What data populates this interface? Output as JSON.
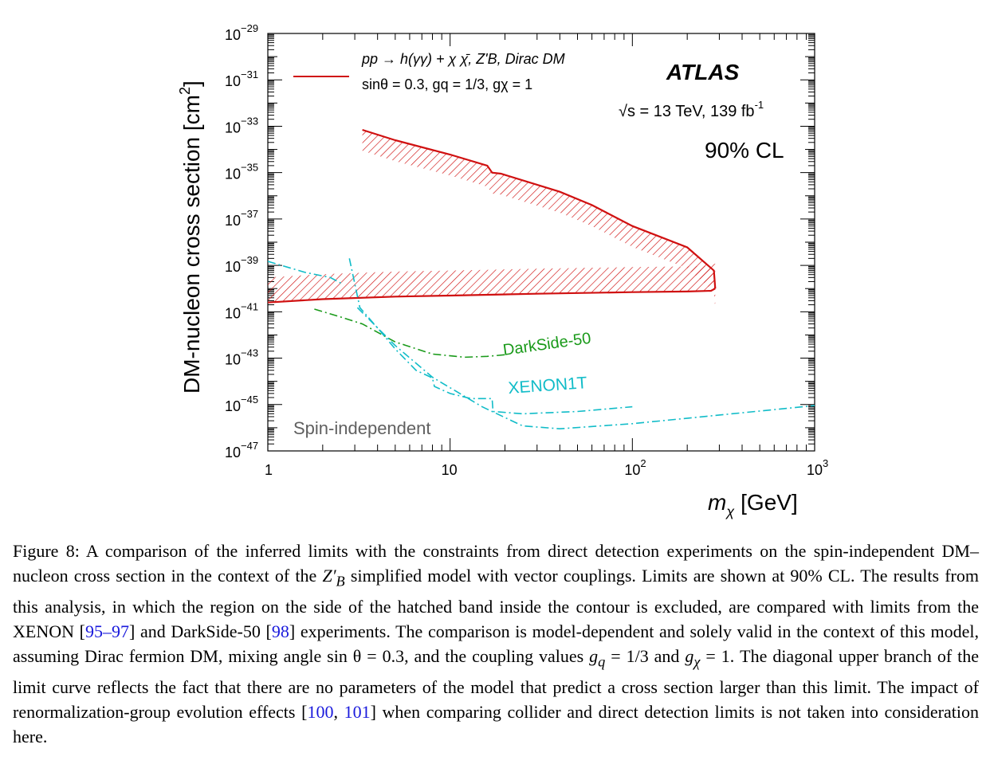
{
  "chart_data": {
    "type": "line",
    "experiment": "ATLAS",
    "energy_lumi": "√s = 13 TeV, 139 fb",
    "energy_lumi_sup": "-1",
    "cl": "90% CL",
    "ylabel": "DM-nucleon cross section [cm",
    "ylabel_sup": "2",
    "ylabel_end": "]",
    "xlabel": "m",
    "xlabel_sub": "χ",
    "xlabel_unit": "[GeV]",
    "xscale": "log",
    "yscale": "log",
    "xlim": [
      1,
      1000
    ],
    "ylim": [
      1e-47,
      1e-29
    ],
    "x_ticks": [
      {
        "value": 1,
        "label": "1",
        "sup": ""
      },
      {
        "value": 10,
        "label": "10",
        "sup": ""
      },
      {
        "value": 100,
        "label": "10",
        "sup": "2"
      },
      {
        "value": 1000,
        "label": "10",
        "sup": "3"
      }
    ],
    "y_ticks": [
      {
        "exp": -29,
        "label": "10",
        "sup": "−29"
      },
      {
        "exp": -31,
        "label": "10",
        "sup": "−31"
      },
      {
        "exp": -33,
        "label": "10",
        "sup": "−33"
      },
      {
        "exp": -35,
        "label": "10",
        "sup": "−35"
      },
      {
        "exp": -37,
        "label": "10",
        "sup": "−37"
      },
      {
        "exp": -39,
        "label": "10",
        "sup": "−39"
      },
      {
        "exp": -41,
        "label": "10",
        "sup": "−41"
      },
      {
        "exp": -43,
        "label": "10",
        "sup": "−43"
      },
      {
        "exp": -45,
        "label": "10",
        "sup": "−45"
      },
      {
        "exp": -47,
        "label": "10",
        "sup": "−47"
      }
    ],
    "legend_line1": "pp → h(γγ) + χ χ̄, Z'B, Dirac DM",
    "legend_line2": "sinθ = 0.3, gq = 1/3, gχ = 1",
    "region_label": "Spin-independent",
    "series": [
      {
        "name": "pp → h(γγ) + χ χ̄, Z'B, Dirac DM",
        "color": "#d01010",
        "style": "solid-hatched",
        "upper_branch": [
          [
            3.3,
            7e-34
          ],
          [
            5,
            2.5e-34
          ],
          [
            10,
            6e-35
          ],
          [
            16,
            2e-35
          ],
          [
            17,
            1e-35
          ],
          [
            19,
            9e-36
          ],
          [
            40,
            1.5e-36
          ],
          [
            60,
            4e-37
          ],
          [
            100,
            5e-38
          ],
          [
            200,
            6e-39
          ],
          [
            280,
            6e-40
          ],
          [
            285,
            1e-40
          ]
        ],
        "lower_branch": [
          [
            1,
            2.5e-41
          ],
          [
            2,
            3.5e-41
          ],
          [
            5,
            4.5e-41
          ],
          [
            10,
            5e-41
          ],
          [
            30,
            6e-41
          ],
          [
            100,
            7e-41
          ],
          [
            200,
            7.5e-41
          ],
          [
            270,
            8e-41
          ],
          [
            285,
            1e-40
          ]
        ],
        "band": [
          [
            1,
            2.5e-41,
            4e-40
          ],
          [
            280,
            8e-41,
            3e-40
          ]
        ]
      },
      {
        "name": "DarkSide-50",
        "color": "#1a9a1a",
        "style": "dash-dot",
        "points": [
          [
            1.8,
            1.3e-41
          ],
          [
            2.5,
            6e-42
          ],
          [
            3.3,
            3e-42
          ],
          [
            5,
            5e-43
          ],
          [
            8,
            1.5e-43
          ],
          [
            12,
            1.1e-43
          ],
          [
            16,
            1.2e-43
          ],
          [
            20,
            1.4e-43
          ]
        ]
      },
      {
        "name": "XENON1T",
        "color": "#11bcc8",
        "style": "dash-dot",
        "segments": [
          [
            [
              1,
              1.5e-39
            ],
            [
              1.6,
              5e-40
            ],
            [
              2.2,
              3e-40
            ],
            [
              2.6,
              1.5e-40
            ]
          ],
          [
            [
              2.8,
              2e-39
            ],
            [
              3.2,
              1.5e-41
            ],
            [
              4,
              2e-42
            ],
            [
              5,
              2.5e-43
            ],
            [
              6.5,
              3e-44
            ],
            [
              8,
              1.4e-44
            ],
            [
              8.2,
              6e-45
            ],
            [
              10,
              3e-45
            ],
            [
              13,
              1.8e-45
            ],
            [
              17,
              1.8e-45
            ],
            [
              17.2,
              5e-46
            ],
            [
              25,
              4e-46
            ],
            [
              50,
              5e-46
            ],
            [
              100,
              8e-46
            ]
          ],
          [
            [
              3.1,
              1.5e-41
            ],
            [
              5,
              3.5e-43
            ],
            [
              8,
              1.5e-44
            ],
            [
              15,
              8e-46
            ],
            [
              25,
              1.2e-46
            ],
            [
              40,
              9e-47
            ],
            [
              100,
              1.5e-46
            ],
            [
              1000,
              9e-46
            ]
          ]
        ]
      }
    ],
    "grid": false,
    "legend_position": "top-left"
  },
  "caption": {
    "figure_label": "Figure 8:",
    "part1": " A comparison of the inferred limits with the constraints from direct detection experiments on the spin-independent DM–nucleon cross section in the context of the ",
    "model_symbol": "Z′",
    "model_sub": "B",
    "part2": " simplified model with vector couplings. Limits are shown at 90% CL. The results from this analysis, in which the region on the side of the hatched band inside the contour is excluded, are compared with limits from the XENON [",
    "ref1": "95–97",
    "part3": "] and DarkSide-50 [",
    "ref2": "98",
    "part4": "] experiments. The comparison is model-dependent and solely valid in the context of this model, assuming Dirac fermion DM, mixing angle sin θ = 0.3, and the coupling values ",
    "gq": "g",
    "gq_sub": "q",
    "gq_val": " = 1/3 and ",
    "gx": "g",
    "gx_sub": "χ",
    "gx_val": " = 1. The diagonal upper branch of the limit curve reflects the fact that there are no parameters of the model that predict a cross section larger than this limit. The impact of renormalization-group evolution effects [",
    "ref3": "100",
    "ref_sep": ", ",
    "ref4": "101",
    "part5": "] when comparing collider and direct detection limits is not taken into consideration here."
  }
}
